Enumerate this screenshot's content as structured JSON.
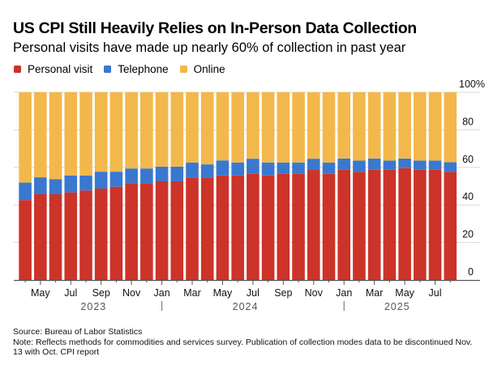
{
  "header": {
    "title": "US CPI Still Heavily Relies on In-Person Data Collection",
    "subtitle": "Personal visits have made up nearly 60% of collection in past year"
  },
  "legend": [
    {
      "label": "Personal visit",
      "color": "#cc3329"
    },
    {
      "label": "Telephone",
      "color": "#3a78d0"
    },
    {
      "label": "Online",
      "color": "#f2b84b"
    }
  ],
  "footer": {
    "source": "Source: Bureau of Labor Statistics",
    "note": "Note: Reflects methods for commodities and services survey. Publication of collection modes data to be discontinued Nov. 13 with Oct. CPI report"
  },
  "chart_data": {
    "type": "bar",
    "stacked": true,
    "title": "US CPI Still Heavily Relies on In-Person Data Collection",
    "subtitle": "Personal visits have made up nearly 60% of collection in past year",
    "xlabel": "",
    "ylabel": "",
    "ylim": [
      0,
      100
    ],
    "yticks": [
      "0",
      "20",
      "40",
      "60",
      "80",
      "100%"
    ],
    "ytick_values": [
      0,
      20,
      40,
      60,
      80,
      100
    ],
    "y_axis_side": "right",
    "grid": true,
    "legend_position": "top-left",
    "categories": [
      "Apr 2023",
      "May 2023",
      "Jun 2023",
      "Jul 2023",
      "Aug 2023",
      "Sep 2023",
      "Oct 2023",
      "Nov 2023",
      "Dec 2023",
      "Jan 2024",
      "Feb 2024",
      "Mar 2024",
      "Apr 2024",
      "May 2024",
      "Jun 2024",
      "Jul 2024",
      "Aug 2024",
      "Sep 2024",
      "Oct 2024",
      "Nov 2024",
      "Dec 2024",
      "Jan 2025",
      "Feb 2025",
      "Mar 2025",
      "Apr 2025",
      "May 2025",
      "Jun 2025",
      "Jul 2025",
      "Aug 2025"
    ],
    "x_tick_labels": [
      {
        "index": 1,
        "label": "May"
      },
      {
        "index": 3,
        "label": "Jul"
      },
      {
        "index": 5,
        "label": "Sep"
      },
      {
        "index": 7,
        "label": "Nov"
      },
      {
        "index": 9,
        "label": "Jan"
      },
      {
        "index": 11,
        "label": "Mar"
      },
      {
        "index": 13,
        "label": "May"
      },
      {
        "index": 15,
        "label": "Jul"
      },
      {
        "index": 17,
        "label": "Sep"
      },
      {
        "index": 19,
        "label": "Nov"
      },
      {
        "index": 21,
        "label": "Jan"
      },
      {
        "index": 23,
        "label": "Mar"
      },
      {
        "index": 25,
        "label": "May"
      },
      {
        "index": 27,
        "label": "Jul"
      }
    ],
    "year_labels": [
      {
        "label": "2023",
        "center_index": 4.5
      },
      {
        "label": "2024",
        "center_index": 14.5
      },
      {
        "label": "2025",
        "center_index": 24.5
      }
    ],
    "year_separators": [
      9,
      21
    ],
    "series": [
      {
        "name": "Personal visit",
        "color": "#cc3329",
        "values": [
          42.6,
          45.7,
          45.7,
          46.7,
          47.7,
          48.7,
          49.7,
          51.6,
          51.6,
          52.6,
          52.6,
          54.6,
          54.6,
          55.7,
          55.7,
          56.6,
          55.7,
          56.6,
          56.6,
          58.6,
          56.6,
          58.7,
          57.6,
          58.7,
          58.7,
          59.6,
          58.7,
          58.7,
          57.6
        ]
      },
      {
        "name": "Telephone",
        "color": "#3a78d0",
        "values": [
          9.3,
          9.0,
          8.0,
          9.0,
          8.0,
          9.0,
          8.0,
          7.8,
          7.8,
          7.8,
          7.8,
          8.0,
          7.0,
          8.0,
          6.9,
          8.0,
          6.9,
          6.0,
          6.0,
          6.0,
          6.0,
          6.0,
          6.0,
          6.0,
          4.9,
          5.1,
          4.9,
          4.9,
          5.1
        ]
      },
      {
        "name": "Online",
        "color": "#f2b84b",
        "values": [
          48.1,
          45.3,
          46.3,
          44.3,
          44.3,
          42.3,
          42.3,
          40.6,
          40.6,
          39.6,
          39.6,
          37.4,
          38.4,
          36.3,
          37.4,
          35.4,
          37.4,
          37.4,
          37.4,
          35.4,
          37.4,
          35.3,
          36.4,
          35.3,
          36.4,
          35.3,
          36.4,
          36.4,
          37.3
        ]
      }
    ]
  }
}
